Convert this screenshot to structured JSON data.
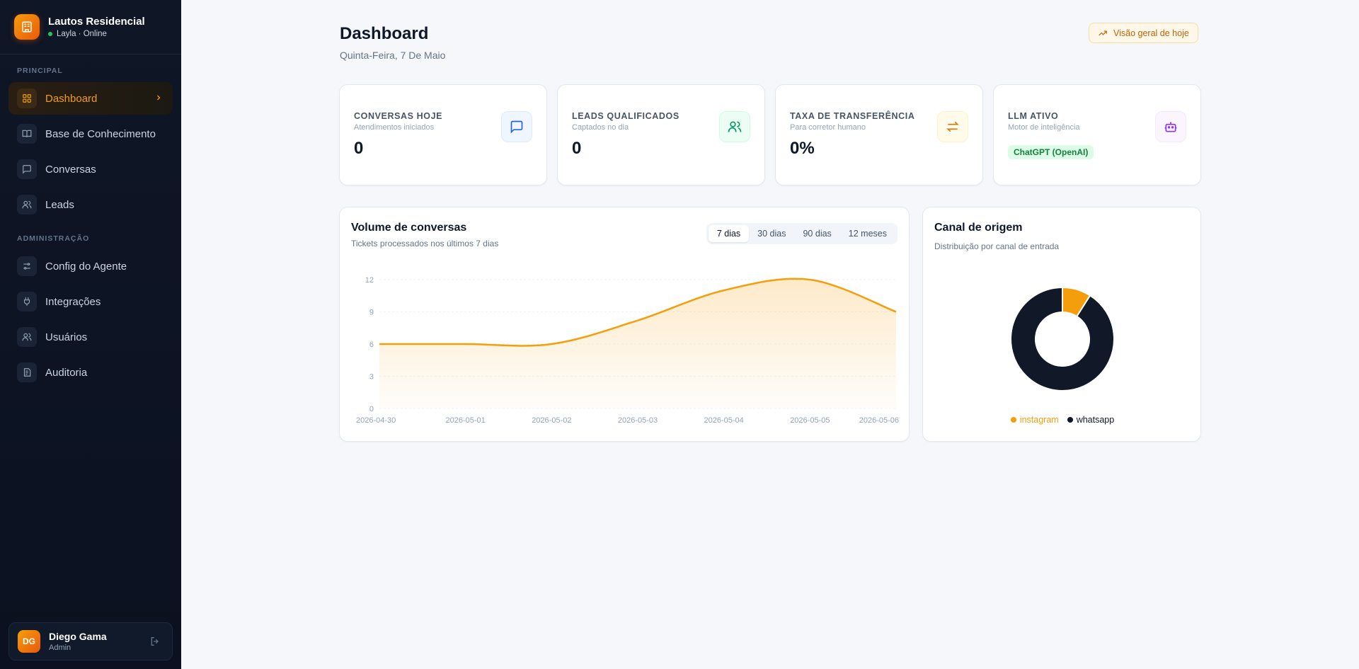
{
  "brand": {
    "title": "Lautos Residencial",
    "status": "Layla · Online"
  },
  "sidebar": {
    "sections": [
      {
        "label": "PRINCIPAL"
      },
      {
        "label": "ADMINISTRAÇÃO"
      }
    ],
    "items": [
      {
        "label": "Dashboard",
        "icon": "dashboard-icon",
        "active": true
      },
      {
        "label": "Base de Conhecimento",
        "icon": "book-icon"
      },
      {
        "label": "Conversas",
        "icon": "chat-icon"
      },
      {
        "label": "Leads",
        "icon": "users-icon"
      },
      {
        "label": "Config do Agente",
        "icon": "sliders-icon"
      },
      {
        "label": "Integrações",
        "icon": "plug-icon"
      },
      {
        "label": "Usuários",
        "icon": "users-icon"
      },
      {
        "label": "Auditoria",
        "icon": "audit-icon"
      }
    ]
  },
  "user": {
    "initials": "DG",
    "name": "Diego Gama",
    "role": "Admin"
  },
  "header": {
    "title": "Dashboard",
    "subtitle": "Quinta-Feira, 7 De Maio",
    "overview_label": "Visão geral de hoje"
  },
  "stats": [
    {
      "label": "CONVERSAS HOJE",
      "sub": "Atendimentos iniciados",
      "value": "0",
      "icon": "chat-icon",
      "color": "#2563eb",
      "bg": "#eff6ff"
    },
    {
      "label": "LEADS QUALIFICADOS",
      "sub": "Captados no dia",
      "value": "0",
      "icon": "users-icon",
      "color": "#059669",
      "bg": "#ecfdf5"
    },
    {
      "label": "TAXA DE TRANSFERÊNCIA",
      "sub": "Para corretor humano",
      "value": "0%",
      "icon": "transfer-icon",
      "color": "#d97706",
      "bg": "#fffbeb"
    },
    {
      "label": "LLM ATIVO",
      "sub": "Motor de inteligência",
      "badge": "ChatGPT (OpenAI)",
      "icon": "robot-icon",
      "color": "#9333ea",
      "bg": "#faf5ff"
    }
  ],
  "volume": {
    "title": "Volume de conversas",
    "subtitle": "Tickets processados nos últimos 7 dias",
    "tabs": [
      "7 dias",
      "30 dias",
      "90 dias",
      "12 meses"
    ],
    "active_tab": "7 dias"
  },
  "chart_data": [
    {
      "type": "area",
      "x": [
        "2026-04-30",
        "2026-05-01",
        "2026-05-02",
        "2026-05-03",
        "2026-05-04",
        "2026-05-05",
        "2026-05-06"
      ],
      "series": [
        {
          "values": [
            6,
            6,
            6,
            8.2,
            11,
            12,
            9
          ]
        }
      ],
      "yticks": [
        0,
        3,
        6,
        9,
        12
      ],
      "ylim": [
        0,
        12
      ],
      "color": "#f59e0b",
      "grid": true
    },
    {
      "type": "pie",
      "title": "Canal de origem",
      "subtitle": "Distribuição por canal de entrada",
      "labels": [
        "instagram",
        "whatsapp"
      ],
      "values": [
        9,
        91
      ],
      "colors": [
        "#f59e0b",
        "#111827"
      ],
      "legend": "bottom"
    }
  ]
}
